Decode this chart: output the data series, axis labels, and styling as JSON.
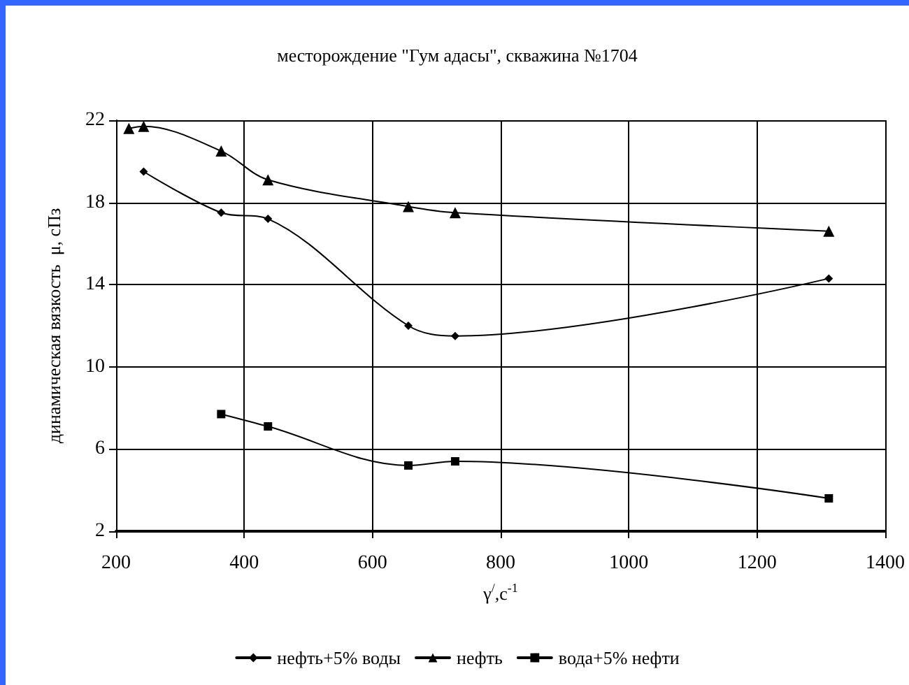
{
  "chart_data": {
    "type": "line",
    "title": "месторождение \"Гум адасы\", скважина №1704",
    "xlabel": "γ$^{/}$,с$^{-1}$",
    "ylabel": "динамическая вязкость  μ, сПз",
    "xlim": [
      200,
      1400
    ],
    "xticks": [
      200,
      400,
      600,
      800,
      1000,
      1200,
      1400
    ],
    "ylim": [
      2,
      22
    ],
    "yticks": [
      2,
      6,
      10,
      14,
      18,
      22
    ],
    "grid": true,
    "legend": "bottom",
    "line_style": "solid",
    "series": [
      {
        "name": "нефть+5% воды",
        "color": "#000000",
        "marker": "diamond",
        "x": [
          243,
          364,
          437,
          656,
          729,
          1312
        ],
        "values": [
          19.5,
          17.5,
          17.2,
          12.0,
          11.5,
          14.3
        ]
      },
      {
        "name": "нефть",
        "color": "#000000",
        "marker": "triangle",
        "x": [
          220,
          243,
          364,
          437,
          656,
          729,
          1312
        ],
        "values": [
          21.6,
          21.7,
          20.5,
          19.1,
          17.8,
          17.5,
          16.6
        ]
      },
      {
        "name": "вода+5% нефти",
        "color": "#000000",
        "marker": "square",
        "x": [
          364,
          437,
          656,
          729,
          1312
        ],
        "values": [
          7.7,
          7.1,
          5.2,
          5.4,
          3.6
        ]
      }
    ]
  }
}
